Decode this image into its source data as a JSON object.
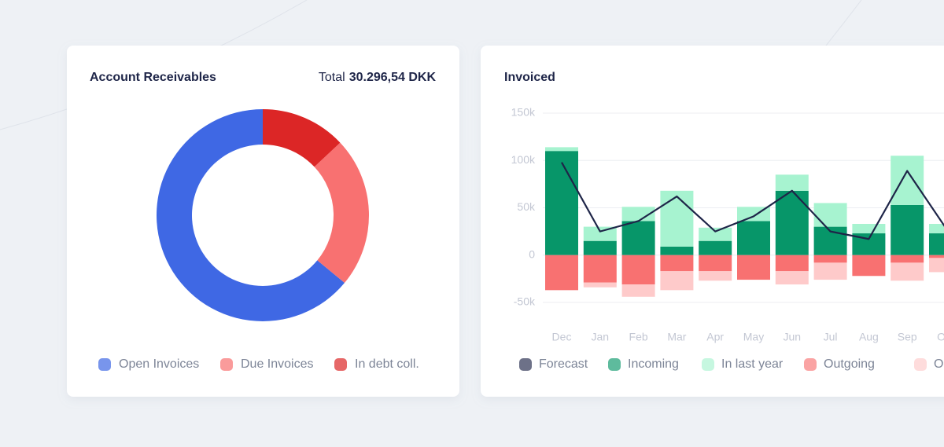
{
  "chart_data": [
    {
      "type": "donut",
      "title": "Account Receivables",
      "total_label": "Total",
      "total": "30.296,54 DKK",
      "categories": [
        "Open Invoices",
        "Due Invoices",
        "In debt coll."
      ],
      "values": [
        64,
        23,
        13
      ],
      "colors": [
        "#3f68e4",
        "#f87171",
        "#dc2626"
      ]
    },
    {
      "type": "stacked-bar-line",
      "title": "Invoiced",
      "categories": [
        "Dec",
        "Jan",
        "Feb",
        "Mar",
        "Apr",
        "May",
        "Jun",
        "Jul",
        "Aug",
        "Sep",
        "Oct"
      ],
      "ylim": [
        -50000,
        150000
      ],
      "yticks": [
        {
          "value": 150000,
          "label": "150k"
        },
        {
          "value": 100000,
          "label": "100k"
        },
        {
          "value": 50000,
          "label": "50k"
        },
        0,
        {
          "value": -50000,
          "label": "-50k"
        }
      ],
      "grid": true,
      "series": [
        {
          "name": "Forecast",
          "color": "#1e2548",
          "kind": "line",
          "values": [
            98000,
            25000,
            36000,
            62000,
            25000,
            41000,
            68000,
            25000,
            17000,
            89000,
            29000
          ]
        },
        {
          "name": "Incoming",
          "color": "#079669",
          "kind": "bar",
          "values": [
            110000,
            15000,
            36000,
            9000,
            15000,
            36000,
            68000,
            30000,
            23000,
            53000,
            23000
          ]
        },
        {
          "name": "In last year",
          "color": "#a7f3d0",
          "kind": "bar",
          "values": [
            4000,
            15000,
            15000,
            59000,
            14000,
            15000,
            17000,
            25000,
            10000,
            52000,
            10000
          ]
        },
        {
          "name": "Outgoing",
          "color": "#f87171",
          "kind": "bar",
          "values": [
            -37000,
            -29000,
            -31000,
            -17000,
            -17000,
            -26000,
            -17000,
            -8000,
            -22000,
            -8000,
            -3000
          ]
        },
        {
          "name": "Out last year",
          "color": "#fecaca",
          "kind": "bar",
          "values": [
            0,
            -5000,
            -13000,
            -20000,
            -10000,
            0,
            -14000,
            -18000,
            0,
            -19000,
            -15000
          ]
        }
      ]
    }
  ]
}
